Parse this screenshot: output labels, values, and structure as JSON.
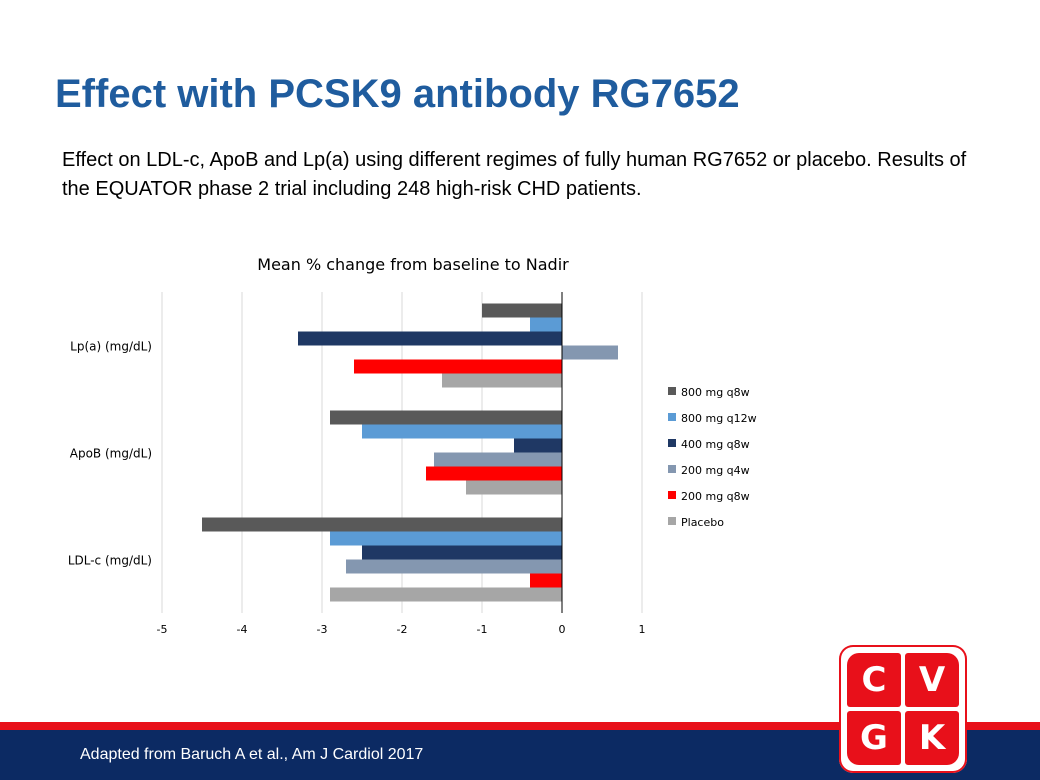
{
  "slide": {
    "title": "Effect with PCSK9 antibody RG7652",
    "subtitle": "Effect on LDL-c, ApoB and Lp(a) using different regimes of fully human RG7652 or placebo. Results of the EQUATOR phase 2 trial including 248 high-risk CHD patients.",
    "footer": "Adapted from Baruch A et al., Am J Cardiol 2017"
  },
  "logo": {
    "letters": [
      "C",
      "V",
      "G",
      "K"
    ],
    "color": "#e8101a"
  },
  "chart_data": {
    "type": "bar",
    "orientation": "horizontal",
    "title": "Mean % change from baseline to Nadir",
    "xlabel": "",
    "ylabel": "",
    "categories": [
      "LDL-c (mg/dL)",
      "ApoB (mg/dL)",
      "Lp(a) (mg/dL)"
    ],
    "xlim": [
      -5,
      1
    ],
    "xticks": [
      -5,
      -4,
      -3,
      -2,
      -1,
      0,
      1
    ],
    "grid": true,
    "legend_position": "right",
    "series": [
      {
        "name": "800 mg q8w",
        "color": "#595959",
        "values": [
          -4.5,
          -2.9,
          -1.0
        ]
      },
      {
        "name": "800 mg q12w",
        "color": "#5b9bd5",
        "values": [
          -2.9,
          -2.5,
          -0.4
        ]
      },
      {
        "name": "400 mg q8w",
        "color": "#1f3864",
        "values": [
          -2.5,
          -0.6,
          -3.3
        ]
      },
      {
        "name": "200 mg q4w",
        "color": "#8497b0",
        "values": [
          -2.7,
          -1.6,
          0.7
        ]
      },
      {
        "name": "200 mg q8w",
        "color": "#ff0000",
        "values": [
          -0.4,
          -1.7,
          -2.6
        ]
      },
      {
        "name": "Placebo",
        "color": "#a6a6a6",
        "values": [
          -2.9,
          -1.2,
          -1.5
        ]
      }
    ]
  }
}
